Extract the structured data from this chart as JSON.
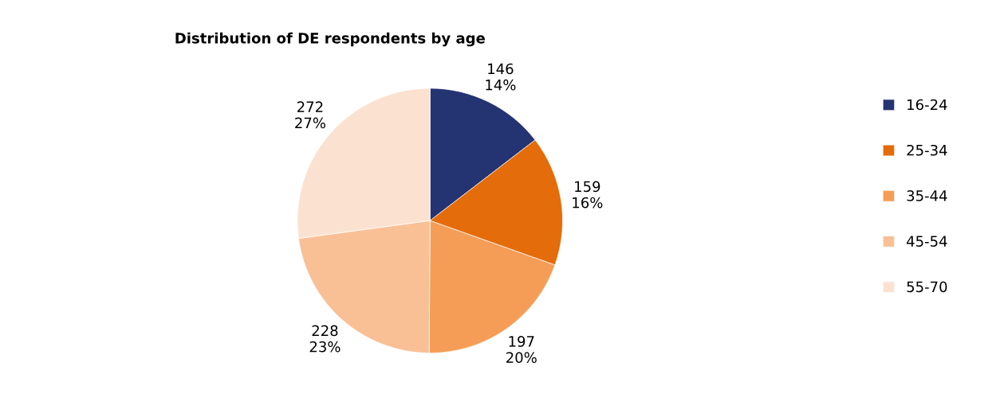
{
  "chart_data": {
    "type": "pie",
    "title": "Distribution of DE respondents by age",
    "categories": [
      "16-24",
      "25-34",
      "35-44",
      "45-54",
      "55-70"
    ],
    "values": [
      146,
      159,
      197,
      228,
      272
    ],
    "colors": [
      "#243372",
      "#e46c0a",
      "#f59d56",
      "#f9c096",
      "#fbe2d0"
    ],
    "value_labels": [
      "146\n14%",
      "159\n16%",
      "197\n20%",
      "228\n23%",
      "272\n27%"
    ],
    "legend": "right"
  }
}
